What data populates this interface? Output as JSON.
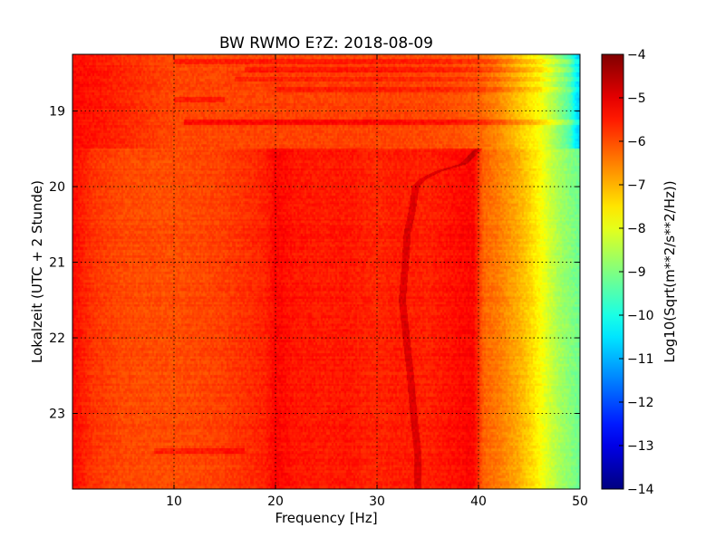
{
  "chart_data": {
    "type": "heatmap",
    "title": "BW RWMO E?Z: 2018-08-09",
    "xlabel": "Frequency [Hz]",
    "ylabel": "Lokalzeit (UTC + 2 Stunde)",
    "xlim": [
      0,
      50
    ],
    "ylim": [
      18.25,
      24.0
    ],
    "y_inverted": true,
    "grid": true,
    "x_ticks": [
      10,
      20,
      30,
      40,
      50
    ],
    "x_tick_labels": [
      "10",
      "20",
      "30",
      "40",
      "50"
    ],
    "y_ticks": [
      19,
      20,
      21,
      22,
      23
    ],
    "y_tick_labels": [
      "19",
      "20",
      "21",
      "22",
      "23"
    ],
    "colorbar": {
      "label": "Log10(Sqrt(m**2/s**2/Hz))",
      "colormap": "jet",
      "range": [
        -14,
        -4
      ],
      "ticks": [
        -4,
        -5,
        -6,
        -7,
        -8,
        -9,
        -10,
        -11,
        -12,
        -13,
        -14
      ],
      "tick_labels": [
        "−4",
        "−5",
        "−6",
        "−7",
        "−8",
        "−9",
        "−10",
        "−11",
        "−12",
        "−13",
        "−14"
      ]
    },
    "spectral_profile": {
      "frequency_hz": [
        0,
        2,
        5,
        10,
        15,
        19,
        20,
        22,
        25,
        27,
        30,
        32,
        35,
        38,
        39.5,
        40.5,
        42,
        43,
        44,
        45,
        46,
        47,
        48,
        49,
        50
      ],
      "log10_amplitude": [
        -5.3,
        -5.75,
        -5.95,
        -6.0,
        -5.85,
        -5.55,
        -5.25,
        -5.45,
        -5.5,
        -5.45,
        -5.6,
        -5.5,
        -5.55,
        -5.35,
        -5.25,
        -6.2,
        -6.45,
        -6.7,
        -6.95,
        -7.3,
        -7.7,
        -8.2,
        -8.6,
        -8.9,
        -9.2
      ]
    },
    "before_transition": {
      "until_hour": 19.5,
      "frequency_hz": [
        0,
        10,
        20,
        30,
        35,
        38,
        40,
        42,
        44,
        46,
        47,
        48,
        49,
        49.5,
        50
      ],
      "log10_amplitude": [
        -5.3,
        -5.95,
        -5.9,
        -5.9,
        -5.95,
        -6.05,
        -6.2,
        -6.6,
        -7.2,
        -7.8,
        -8.3,
        -8.9,
        -9.5,
        -10.3,
        -10.8
      ]
    },
    "narrowband_line": {
      "hour": [
        19.5,
        19.7,
        19.8,
        19.9,
        20.0,
        20.3,
        20.6,
        21.0,
        21.5,
        22.0,
        22.5,
        23.0,
        23.5,
        23.9
      ],
      "frequency_hz": [
        40.0,
        38.5,
        36.0,
        34.5,
        33.8,
        33.5,
        33.0,
        32.8,
        32.5,
        32.9,
        33.3,
        33.6,
        34.0,
        34.0
      ]
    },
    "horizontal_bands": [
      {
        "hour": 18.35,
        "f_start": 10,
        "f_end": 50,
        "delta": 0.45
      },
      {
        "hour": 18.45,
        "f_start": 17,
        "f_end": 50,
        "delta": 0.45
      },
      {
        "hour": 18.58,
        "f_start": 16,
        "f_end": 50,
        "delta": 0.35
      },
      {
        "hour": 18.72,
        "f_start": 20,
        "f_end": 50,
        "delta": 0.35
      },
      {
        "hour": 18.85,
        "f_start": 10,
        "f_end": 15,
        "delta": 0.45
      },
      {
        "hour": 19.15,
        "f_start": 11,
        "f_end": 50,
        "delta": 0.6
      },
      {
        "hour": 23.5,
        "f_start": 8,
        "f_end": 17,
        "delta": 0.45
      }
    ]
  }
}
